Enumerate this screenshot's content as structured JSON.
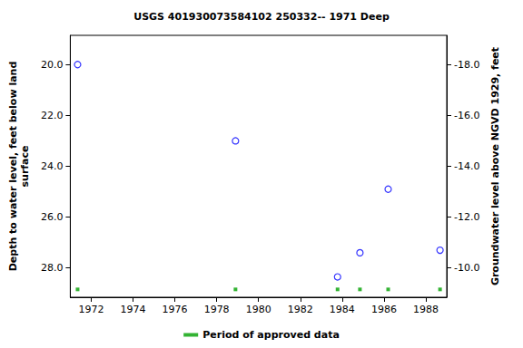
{
  "chart_data": {
    "type": "scatter",
    "title": "USGS 401930073584102 250332-- 1971 Deep",
    "ylabel": "Depth to water level, feet below land\nsurface",
    "y2label": "Groundwater level above NGVD 1929, feet",
    "x": [
      1971.35,
      1978.9,
      1983.78,
      1984.85,
      1986.2,
      1988.68
    ],
    "values": [
      20.0,
      23.0,
      28.35,
      27.4,
      24.9,
      27.3
    ],
    "color": "#0000ff",
    "marker": "circle_open",
    "xlim": [
      1971.0,
      1989.0
    ],
    "xticks": [
      1972,
      1974,
      1976,
      1978,
      1980,
      1982,
      1984,
      1986,
      1988
    ],
    "ylim": [
      18.85,
      29.15
    ],
    "yticks": [
      {
        "value": 20,
        "label": "20.0"
      },
      {
        "value": 22,
        "label": "22.0"
      },
      {
        "value": 24,
        "label": "24.0"
      },
      {
        "value": 26,
        "label": "26.0"
      },
      {
        "value": 28,
        "label": "28.0"
      }
    ],
    "y2lim": [
      -8.85,
      -19.15
    ],
    "y2ticks": [
      {
        "value": -10,
        "label": "-10.0"
      },
      {
        "value": -12,
        "label": "-12.0"
      },
      {
        "value": -14,
        "label": "-14.0"
      },
      {
        "value": -16,
        "label": "-16.0"
      },
      {
        "value": -18,
        "label": "-18.0"
      }
    ],
    "grid": false,
    "legend": "bottom",
    "approved_periods": {
      "name": "Period of approved data",
      "color": "#00a000",
      "marker": "square",
      "x": [
        1971.35,
        1978.9,
        1983.78,
        1984.85,
        1986.2,
        1988.68
      ]
    }
  }
}
